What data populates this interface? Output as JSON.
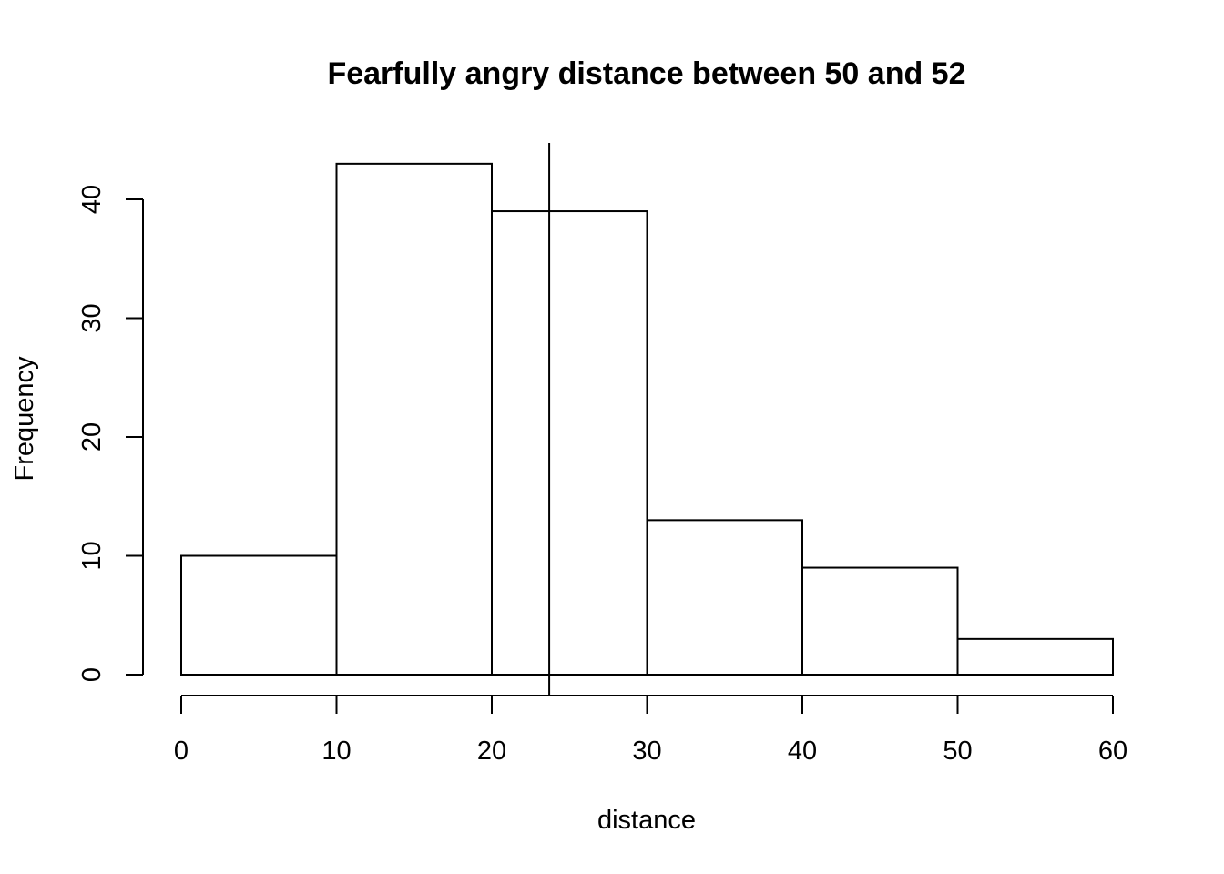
{
  "chart_data": {
    "type": "bar",
    "title": "Fearfully angry distance between 50 and 52",
    "xlabel": "distance",
    "ylabel": "Frequency",
    "bins": [
      [
        0,
        10
      ],
      [
        10,
        20
      ],
      [
        20,
        30
      ],
      [
        30,
        40
      ],
      [
        40,
        50
      ],
      [
        50,
        60
      ]
    ],
    "values": [
      10,
      43,
      39,
      13,
      9,
      3
    ],
    "xlim": [
      0,
      60
    ],
    "ylim": [
      0,
      43
    ],
    "x_ticks": [
      "0",
      "10",
      "20",
      "30",
      "40",
      "50",
      "60"
    ],
    "y_ticks": [
      "0",
      "10",
      "20",
      "30",
      "40"
    ],
    "reference_line_x": 23.7,
    "grid": false,
    "bar_fill": "#ffffff",
    "bar_stroke": "#000000"
  }
}
